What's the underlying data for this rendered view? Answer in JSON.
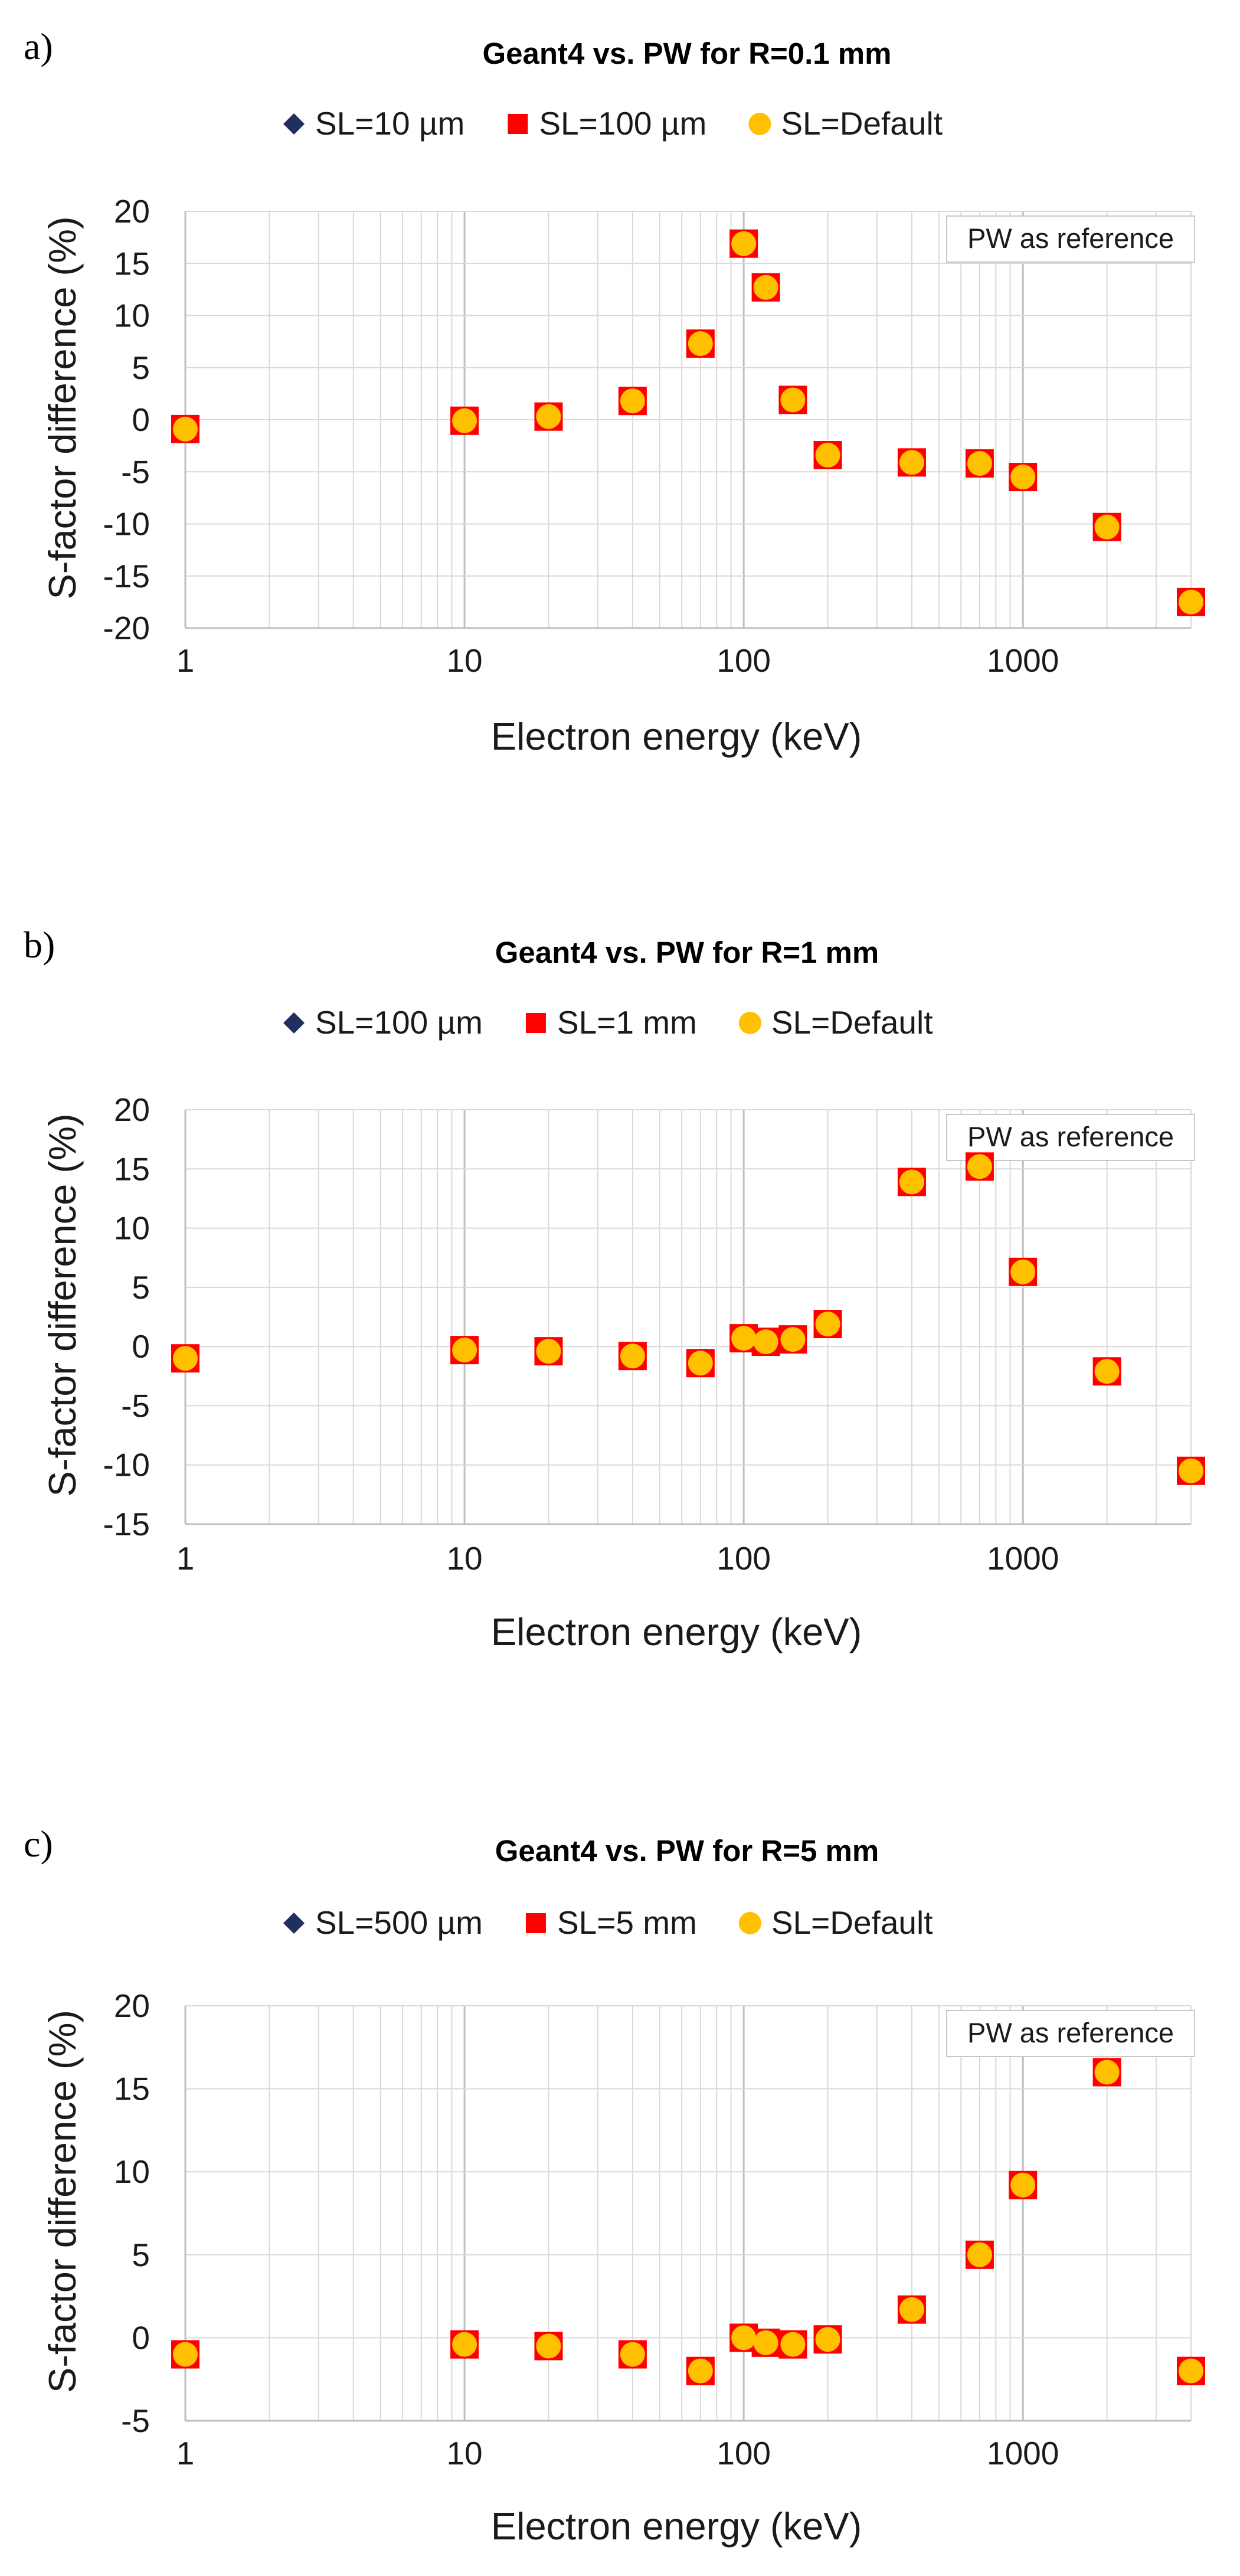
{
  "chart_data": [
    {
      "type": "scatter",
      "panel_label": "a)",
      "title": "Geant4 vs. PW for R=0.1 mm",
      "xlabel": "Electron energy (keV)",
      "ylabel": "S-factor difference (%)",
      "xscale": "log",
      "xlim": [
        1,
        4000
      ],
      "ylim": [
        -20,
        20
      ],
      "ystep": 5,
      "xticks": [
        1,
        10,
        100,
        1000
      ],
      "grid": true,
      "legend_position": "top-center",
      "annotation": "PW as reference",
      "x": [
        1,
        10,
        20,
        40,
        70,
        100,
        120,
        150,
        200,
        400,
        700,
        1000,
        2000,
        4000
      ],
      "series": [
        {
          "name": "SL=10 µm",
          "marker": "diamond",
          "color": "#1f2f5f",
          "values": [
            -0.9,
            -0.1,
            0.3,
            1.8,
            7.3,
            16.9,
            12.7,
            1.9,
            -3.4,
            -4.1,
            -4.2,
            -5.5,
            -10.3,
            -17.5
          ]
        },
        {
          "name": "SL=100 µm",
          "marker": "square",
          "color": "#ff0000",
          "values": [
            -0.9,
            -0.1,
            0.3,
            1.8,
            7.3,
            16.9,
            12.7,
            1.9,
            -3.4,
            -4.1,
            -4.2,
            -5.5,
            -10.3,
            -17.5
          ]
        },
        {
          "name": "SL=Default",
          "marker": "circle",
          "color": "#ffc000",
          "values": [
            -0.9,
            -0.1,
            0.3,
            1.8,
            7.3,
            16.9,
            12.7,
            1.9,
            -3.4,
            -4.1,
            -4.2,
            -5.5,
            -10.3,
            -17.5
          ]
        }
      ]
    },
    {
      "type": "scatter",
      "panel_label": "b)",
      "title": "Geant4 vs. PW for R=1 mm",
      "xlabel": "Electron energy (keV)",
      "ylabel": "S-factor difference (%)",
      "xscale": "log",
      "xlim": [
        1,
        4000
      ],
      "ylim": [
        -15,
        20
      ],
      "ystep": 5,
      "xticks": [
        1,
        10,
        100,
        1000
      ],
      "grid": true,
      "legend_position": "top-center",
      "annotation": "PW as reference",
      "x": [
        1,
        10,
        20,
        40,
        70,
        100,
        120,
        150,
        200,
        400,
        700,
        1000,
        2000,
        4000
      ],
      "series": [
        {
          "name": "SL=100 µm",
          "marker": "diamond",
          "color": "#1f2f5f",
          "values": [
            -1.0,
            -0.3,
            -0.4,
            -0.8,
            -1.4,
            0.7,
            0.4,
            0.6,
            1.9,
            13.9,
            15.2,
            6.3,
            -2.1,
            -10.5
          ]
        },
        {
          "name": "SL=1 mm",
          "marker": "square",
          "color": "#ff0000",
          "values": [
            -1.0,
            -0.3,
            -0.4,
            -0.8,
            -1.4,
            0.7,
            0.4,
            0.6,
            1.9,
            13.9,
            15.2,
            6.3,
            -2.1,
            -10.5
          ]
        },
        {
          "name": "SL=Default",
          "marker": "circle",
          "color": "#ffc000",
          "values": [
            -1.0,
            -0.3,
            -0.4,
            -0.8,
            -1.4,
            0.7,
            0.4,
            0.6,
            1.9,
            13.9,
            15.2,
            6.3,
            -2.1,
            -10.5
          ]
        }
      ]
    },
    {
      "type": "scatter",
      "panel_label": "c)",
      "title": "Geant4 vs. PW for R=5 mm",
      "xlabel": "Electron energy (keV)",
      "ylabel": "S-factor difference (%)",
      "xscale": "log",
      "xlim": [
        1,
        4000
      ],
      "ylim": [
        -5,
        20
      ],
      "ystep": 5,
      "xticks": [
        1,
        10,
        100,
        1000
      ],
      "grid": true,
      "legend_position": "top-center",
      "annotation": "PW as reference",
      "x": [
        1,
        10,
        20,
        40,
        70,
        100,
        120,
        150,
        200,
        400,
        700,
        1000,
        2000,
        4000
      ],
      "series": [
        {
          "name": "SL=500 µm",
          "marker": "diamond",
          "color": "#1f2f5f",
          "values": [
            -1.0,
            -0.4,
            -0.5,
            -1.0,
            -2.0,
            0.0,
            -0.3,
            -0.4,
            -0.1,
            1.7,
            5.0,
            9.2,
            16.0,
            -2.0
          ]
        },
        {
          "name": "SL=5 mm",
          "marker": "square",
          "color": "#ff0000",
          "values": [
            -1.0,
            -0.4,
            -0.5,
            -1.0,
            -2.0,
            0.0,
            -0.3,
            -0.4,
            -0.1,
            1.7,
            5.0,
            9.2,
            16.0,
            -2.0
          ]
        },
        {
          "name": "SL=Default",
          "marker": "circle",
          "color": "#ffc000",
          "values": [
            -1.0,
            -0.4,
            -0.5,
            -1.0,
            -2.0,
            0.0,
            -0.3,
            -0.4,
            -0.1,
            1.7,
            5.0,
            9.2,
            16.0,
            -2.0
          ]
        }
      ]
    }
  ]
}
